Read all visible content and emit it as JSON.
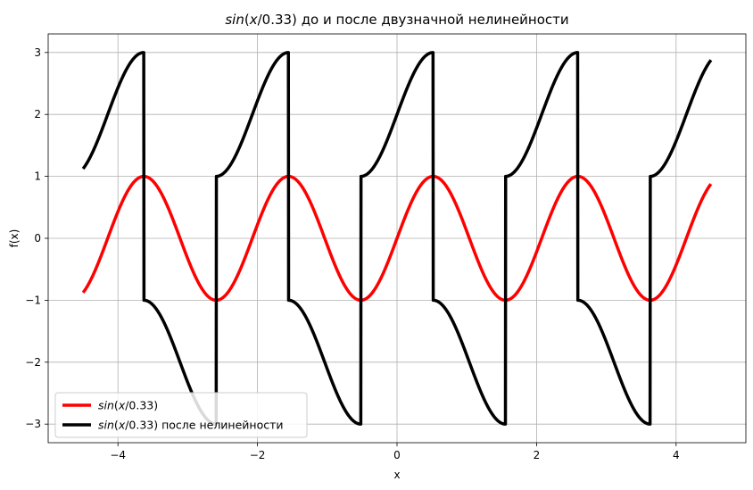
{
  "chart_data": {
    "type": "line",
    "title": {
      "fn": "sin",
      "arg_var": "x",
      "arg_rest": "/0.33)",
      "suffix": " до и после двузначной нелинейности"
    },
    "xlabel": "x",
    "ylabel": "f(x)",
    "xlim": [
      -5.0,
      5.0
    ],
    "ylim": [
      -3.3,
      3.3
    ],
    "xticks": [
      -4,
      -2,
      0,
      2,
      4
    ],
    "yticks": [
      -3,
      -2,
      -1,
      0,
      1,
      2,
      3
    ],
    "grid": true,
    "legend_position": "lower-left",
    "x_range": [
      -4.5,
      4.5
    ],
    "divisor": 0.33,
    "series": [
      {
        "name": "sin(x/0.33)",
        "legend": {
          "fn": "sin",
          "var": "x",
          "rest": "/0.33)",
          "suffix": ""
        },
        "color": "#ff0000",
        "formula": "y = sin(x/0.33)"
      },
      {
        "name": "sin(x/0.33) после нелинейности",
        "legend": {
          "fn": "sin",
          "var": "x",
          "rest": "/0.33)",
          "suffix": " после нелинейности"
        },
        "color": "#000000",
        "formula": "two-valued nonlinearity: rising branch y = 2 + sin(x/0.33) for the rising segment from a minimum to the next maximum; falling branch y = -2 + sin(x/0.33) from a maximum to the next minimum"
      }
    ]
  }
}
